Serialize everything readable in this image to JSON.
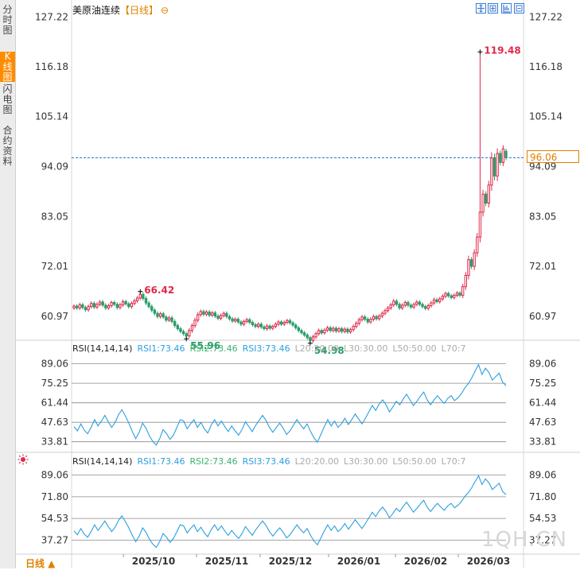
{
  "sidebar": {
    "tabs": [
      {
        "label": [
          "分",
          "时",
          "图"
        ],
        "active": false
      },
      {
        "label": [
          "K",
          "线",
          "图"
        ],
        "active": true
      },
      {
        "label": [
          "闪",
          "电",
          "图"
        ],
        "active": false
      },
      {
        "label": [
          "合",
          "约",
          "资",
          "料"
        ],
        "active": false
      }
    ]
  },
  "header": {
    "title": "美原油连续",
    "period": "【日线】",
    "circle": "⊖"
  },
  "price_box": "96.06",
  "bottom_period": "日线 ▲",
  "watermark": "1QH.CN",
  "rsi1_header": {
    "name": "RSI(14,14,14)",
    "rsi1": "RSI1:73.46",
    "rsi2": "RSI2:73.46",
    "rsi3": "RSI3:73.46",
    "l20": "L20:20.00",
    "l30": "L30:30.00",
    "l50": "L50:50.00",
    "l70": "L70:7"
  },
  "rsi2_header": {
    "name": "RSI(14,14,14)",
    "rsi1": "RSI1:73.46",
    "rsi2": "RSI2:73.46",
    "rsi3": "RSI3:73.46",
    "l20": "L20:20.00",
    "l30": "L30:30.00",
    "l50": "L50:50.00",
    "l70": "L70:7"
  },
  "colors": {
    "up": "#e0294a",
    "down": "#2a9d6a",
    "rsi_line": "#2b9fe0",
    "accent": "#e08000",
    "annotation_high": "#e0294a",
    "annotation_low": "#2a9d6a"
  },
  "chart_data": [
    {
      "type": "candlestick",
      "title": "美原油连续",
      "ytick_labels": [
        "127.22",
        "116.18",
        "105.14",
        "94.09",
        "83.05",
        "72.01",
        "60.97"
      ],
      "ylim": [
        56.0,
        128.5
      ],
      "xtick_labels": [
        "2025/10",
        "2025/11",
        "2025/12",
        "2026/01",
        "2026/02",
        "2026/03"
      ],
      "last_price": 96.06,
      "annotations": [
        {
          "text": "66.42",
          "kind": "high"
        },
        {
          "text": "55.96",
          "kind": "low"
        },
        {
          "text": "54.98",
          "kind": "low"
        },
        {
          "text": "119.48",
          "kind": "high"
        }
      ],
      "closes": [
        63.2,
        62.8,
        63.5,
        62.9,
        62.4,
        63.1,
        63.8,
        63.0,
        63.6,
        64.1,
        63.4,
        62.8,
        63.3,
        64.0,
        63.6,
        62.9,
        63.5,
        64.2,
        63.7,
        63.1,
        63.8,
        64.4,
        65.0,
        65.8,
        64.9,
        63.9,
        63.1,
        62.3,
        61.6,
        60.9,
        61.5,
        60.8,
        60.1,
        60.6,
        59.8,
        58.9,
        58.2,
        57.6,
        57.1,
        56.6,
        57.8,
        58.9,
        60.1,
        61.3,
        62.0,
        61.4,
        61.9,
        61.2,
        61.7,
        61.0,
        60.5,
        61.1,
        61.6,
        60.9,
        60.4,
        59.9,
        60.3,
        59.7,
        59.2,
        59.8,
        60.2,
        59.6,
        59.1,
        58.7,
        59.2,
        58.6,
        58.2,
        58.8,
        58.3,
        58.7,
        59.2,
        59.7,
        59.2,
        59.6,
        60.0,
        59.5,
        59.0,
        58.4,
        57.8,
        57.3,
        56.8,
        56.2,
        55.6,
        56.4,
        57.1,
        57.8,
        57.3,
        57.9,
        58.4,
        57.8,
        58.3,
        57.7,
        58.2,
        57.6,
        58.1,
        57.5,
        58.0,
        58.7,
        59.4,
        60.2,
        60.8,
        60.3,
        59.7,
        60.3,
        60.9,
        60.4,
        61.0,
        61.6,
        62.2,
        62.8,
        63.5,
        64.3,
        63.6,
        62.8,
        63.4,
        64.0,
        63.4,
        63.0,
        63.6,
        64.1,
        63.6,
        63.1,
        62.7,
        63.3,
        63.9,
        64.6,
        64.2,
        64.8,
        65.4,
        66.0,
        65.5,
        65.1,
        65.6,
        66.1,
        65.6,
        67.5,
        70.0,
        73.5,
        72.0,
        75.0,
        78.5,
        84.0,
        88.0,
        86.0,
        90.0,
        96.0,
        92.0,
        97.0,
        95.0,
        98.0,
        96.06
      ]
    },
    {
      "type": "line",
      "title": "RSI(14,14,14)",
      "ytick_labels": [
        "89.06",
        "75.25",
        "61.44",
        "47.63",
        "33.81"
      ],
      "ylim": [
        28.0,
        94.5
      ],
      "reference_lines": [
        89.06,
        75.25,
        61.44,
        47.63,
        33.81
      ],
      "series": [
        {
          "name": "RSI1",
          "values": [
            44.5,
            41.5,
            46.5,
            42.0,
            39.5,
            44.0,
            49.5,
            45.0,
            48.5,
            52.5,
            48.0,
            44.0,
            47.5,
            53.0,
            56.5,
            52.0,
            47.0,
            41.0,
            36.0,
            40.5,
            47.0,
            43.5,
            38.0,
            34.0,
            31.5,
            36.0,
            42.5,
            39.5,
            35.5,
            38.5,
            44.0,
            49.5,
            48.5,
            43.0,
            46.5,
            49.5,
            44.0,
            47.5,
            43.0,
            40.0,
            45.5,
            49.5,
            45.0,
            48.5,
            44.5,
            41.0,
            45.0,
            41.5,
            38.5,
            42.5,
            48.0,
            44.5,
            41.0,
            45.5,
            49.0,
            52.5,
            49.0,
            44.0,
            40.5,
            44.0,
            47.0,
            43.5,
            39.0,
            41.5,
            45.5,
            49.5,
            46.0,
            43.0,
            46.5,
            41.0,
            36.5,
            33.5,
            39.0,
            44.5,
            49.5,
            45.0,
            48.5,
            44.0,
            46.5,
            50.5,
            46.0,
            49.5,
            53.5,
            50.0,
            46.5,
            50.5,
            55.0,
            59.5,
            56.0,
            60.5,
            63.5,
            60.0,
            55.0,
            58.5,
            62.5,
            60.0,
            64.0,
            67.5,
            63.5,
            59.5,
            62.5,
            66.0,
            69.0,
            63.5,
            60.0,
            63.5,
            66.5,
            63.5,
            61.0,
            64.5,
            66.5,
            63.0,
            65.0,
            68.0,
            72.0,
            75.0,
            79.0,
            84.0,
            88.5,
            81.5,
            86.0,
            83.0,
            77.5,
            80.0,
            82.5,
            76.0,
            73.46
          ]
        }
      ]
    },
    {
      "type": "line",
      "title": "RSI(14,14,14)",
      "ytick_labels": [
        "89.06",
        "71.80",
        "54.53",
        "37.27"
      ],
      "ylim": [
        28.0,
        94.5
      ],
      "reference_lines": [
        89.06,
        71.8,
        54.53,
        37.27
      ],
      "series": [
        {
          "name": "RSI1",
          "values": [
            44.5,
            41.5,
            46.5,
            42.0,
            39.5,
            44.0,
            49.5,
            45.0,
            48.5,
            52.5,
            48.0,
            44.0,
            47.5,
            53.0,
            56.5,
            52.0,
            47.0,
            41.0,
            36.0,
            40.5,
            47.0,
            43.5,
            38.0,
            34.0,
            31.5,
            36.0,
            42.5,
            39.5,
            35.5,
            38.5,
            44.0,
            49.5,
            48.5,
            43.0,
            46.5,
            49.5,
            44.0,
            47.5,
            43.0,
            40.0,
            45.5,
            49.5,
            45.0,
            48.5,
            44.5,
            41.0,
            45.0,
            41.5,
            38.5,
            42.5,
            48.0,
            44.5,
            41.0,
            45.5,
            49.0,
            52.5,
            49.0,
            44.0,
            40.5,
            44.0,
            47.0,
            43.5,
            39.0,
            41.5,
            45.5,
            49.5,
            46.0,
            43.0,
            46.5,
            41.0,
            36.5,
            33.5,
            39.0,
            44.5,
            49.5,
            45.0,
            48.5,
            44.0,
            46.5,
            50.5,
            46.0,
            49.5,
            53.5,
            50.0,
            46.5,
            50.5,
            55.0,
            59.5,
            56.0,
            60.5,
            63.5,
            60.0,
            55.0,
            58.5,
            62.5,
            60.0,
            64.0,
            67.5,
            63.5,
            59.5,
            62.5,
            66.0,
            69.0,
            63.5,
            60.0,
            63.5,
            66.5,
            63.5,
            61.0,
            64.5,
            66.5,
            63.0,
            65.0,
            68.0,
            72.0,
            75.0,
            79.0,
            84.0,
            88.5,
            81.5,
            86.0,
            83.0,
            77.5,
            80.0,
            82.5,
            76.0,
            73.46
          ]
        }
      ]
    }
  ]
}
